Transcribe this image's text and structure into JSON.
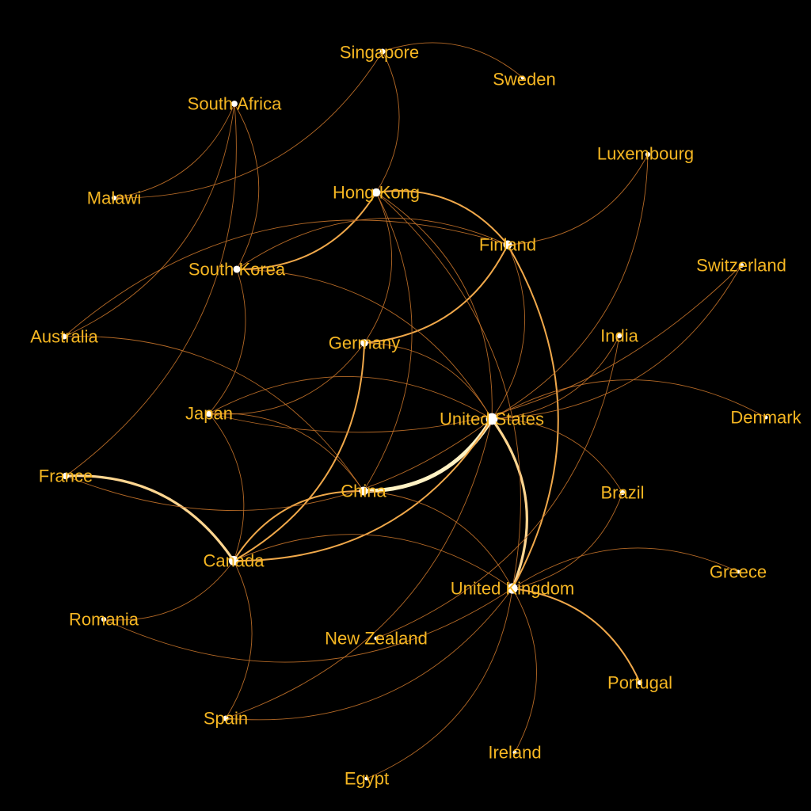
{
  "graph": {
    "colors": {
      "background": "#000000",
      "label": "#f5b622",
      "edge_weak": "#c8742a",
      "edge_medium": "#f0a84a",
      "edge_strong": "#ffd690",
      "edge_heavy": "#fff2c4",
      "node": "#ffffff"
    },
    "nodes": [
      {
        "id": "Singapore",
        "label": "Singapore"
      },
      {
        "id": "Sweden",
        "label": "Sweden"
      },
      {
        "id": "SouthAfrica",
        "label": "South Africa"
      },
      {
        "id": "Luxembourg",
        "label": "Luxembourg"
      },
      {
        "id": "Malawi",
        "label": "Malawi"
      },
      {
        "id": "HongKong",
        "label": "Hong Kong"
      },
      {
        "id": "Finland",
        "label": "Finland"
      },
      {
        "id": "SouthKorea",
        "label": "South Korea"
      },
      {
        "id": "Switzerland",
        "label": "Switzerland"
      },
      {
        "id": "Australia",
        "label": "Australia"
      },
      {
        "id": "India",
        "label": "India"
      },
      {
        "id": "Germany",
        "label": "Germany"
      },
      {
        "id": "Japan",
        "label": "Japan"
      },
      {
        "id": "UnitedStates",
        "label": "United States"
      },
      {
        "id": "Denmark",
        "label": "Denmark"
      },
      {
        "id": "France",
        "label": "France"
      },
      {
        "id": "China",
        "label": "China"
      },
      {
        "id": "Brazil",
        "label": "Brazil"
      },
      {
        "id": "Canada",
        "label": "Canada"
      },
      {
        "id": "Greece",
        "label": "Greece"
      },
      {
        "id": "UnitedKingdom",
        "label": "United Kingdom"
      },
      {
        "id": "Romania",
        "label": "Romania"
      },
      {
        "id": "NewZealand",
        "label": "New Zealand"
      },
      {
        "id": "Portugal",
        "label": "Portugal"
      },
      {
        "id": "Spain",
        "label": "Spain"
      },
      {
        "id": "Ireland",
        "label": "Ireland"
      },
      {
        "id": "Egypt",
        "label": "Egypt"
      }
    ],
    "edges": [
      {
        "source": "UnitedStates",
        "target": "China",
        "weight": 4
      },
      {
        "source": "UnitedStates",
        "target": "UnitedKingdom",
        "weight": 3
      },
      {
        "source": "France",
        "target": "Canada",
        "weight": 3
      },
      {
        "source": "UnitedStates",
        "target": "Canada",
        "weight": 2
      },
      {
        "source": "HongKong",
        "target": "Finland",
        "weight": 2
      },
      {
        "source": "Germany",
        "target": "Canada",
        "weight": 2
      },
      {
        "source": "UnitedKingdom",
        "target": "Portugal",
        "weight": 2
      },
      {
        "source": "Finland",
        "target": "Germany",
        "weight": 2
      },
      {
        "source": "Finland",
        "target": "UnitedKingdom",
        "weight": 2
      },
      {
        "source": "Canada",
        "target": "China",
        "weight": 2
      },
      {
        "source": "HongKong",
        "target": "SouthKorea",
        "weight": 2
      },
      {
        "source": "Finland",
        "target": "UnitedStates",
        "weight": 1
      },
      {
        "source": "Singapore",
        "target": "Sweden",
        "weight": 1
      },
      {
        "source": "Singapore",
        "target": "HongKong",
        "weight": 1
      },
      {
        "source": "Singapore",
        "target": "Malawi",
        "weight": 1
      },
      {
        "source": "SouthAfrica",
        "target": "SouthKorea",
        "weight": 1
      },
      {
        "source": "SouthAfrica",
        "target": "Australia",
        "weight": 1
      },
      {
        "source": "SouthAfrica",
        "target": "France",
        "weight": 1
      },
      {
        "source": "SouthAfrica",
        "target": "Malawi",
        "weight": 1
      },
      {
        "source": "Luxembourg",
        "target": "Finland",
        "weight": 1
      },
      {
        "source": "Luxembourg",
        "target": "UnitedStates",
        "weight": 1
      },
      {
        "source": "HongKong",
        "target": "UnitedStates",
        "weight": 1
      },
      {
        "source": "HongKong",
        "target": "Germany",
        "weight": 1
      },
      {
        "source": "HongKong",
        "target": "China",
        "weight": 1
      },
      {
        "source": "HongKong",
        "target": "UnitedKingdom",
        "weight": 1
      },
      {
        "source": "SouthKorea",
        "target": "Finland",
        "weight": 1
      },
      {
        "source": "SouthKorea",
        "target": "Japan",
        "weight": 1
      },
      {
        "source": "SouthKorea",
        "target": "UnitedStates",
        "weight": 1
      },
      {
        "source": "Australia",
        "target": "Finland",
        "weight": 1
      },
      {
        "source": "Australia",
        "target": "China",
        "weight": 1
      },
      {
        "source": "Switzerland",
        "target": "UnitedStates",
        "weight": 1
      },
      {
        "source": "Switzerland",
        "target": "Japan",
        "weight": 1
      },
      {
        "source": "India",
        "target": "UnitedStates",
        "weight": 1
      },
      {
        "source": "India",
        "target": "NewZealand",
        "weight": 1
      },
      {
        "source": "Germany",
        "target": "Japan",
        "weight": 1
      },
      {
        "source": "Germany",
        "target": "UnitedStates",
        "weight": 1
      },
      {
        "source": "Japan",
        "target": "UnitedStates",
        "weight": 1
      },
      {
        "source": "Japan",
        "target": "Canada",
        "weight": 1
      },
      {
        "source": "Japan",
        "target": "China",
        "weight": 1
      },
      {
        "source": "UnitedStates",
        "target": "Denmark",
        "weight": 1
      },
      {
        "source": "UnitedStates",
        "target": "Brazil",
        "weight": 1
      },
      {
        "source": "UnitedStates",
        "target": "France",
        "weight": 1
      },
      {
        "source": "UnitedStates",
        "target": "Spain",
        "weight": 1
      },
      {
        "source": "Brazil",
        "target": "UnitedKingdom",
        "weight": 1
      },
      {
        "source": "Canada",
        "target": "Spain",
        "weight": 1
      },
      {
        "source": "Canada",
        "target": "Romania",
        "weight": 1
      },
      {
        "source": "Canada",
        "target": "UnitedKingdom",
        "weight": 1
      },
      {
        "source": "China",
        "target": "UnitedKingdom",
        "weight": 1
      },
      {
        "source": "UnitedKingdom",
        "target": "Greece",
        "weight": 1
      },
      {
        "source": "UnitedKingdom",
        "target": "Ireland",
        "weight": 1
      },
      {
        "source": "UnitedKingdom",
        "target": "Egypt",
        "weight": 1
      },
      {
        "source": "UnitedKingdom",
        "target": "Spain",
        "weight": 1
      },
      {
        "source": "UnitedKingdom",
        "target": "Romania",
        "weight": 1
      }
    ]
  }
}
